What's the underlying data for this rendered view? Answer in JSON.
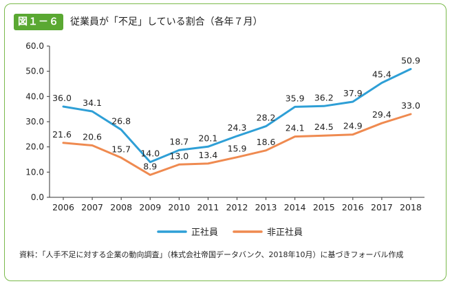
{
  "figure_label": "図１－６",
  "chart_data": {
    "type": "line",
    "title": "従業員が「不足」している割合（各年７月）",
    "categories": [
      "2006",
      "2007",
      "2008",
      "2009",
      "2010",
      "2011",
      "2012",
      "2013",
      "2014",
      "2015",
      "2016",
      "2017",
      "2018"
    ],
    "ylim": [
      0,
      60
    ],
    "yticks": [
      "0.0",
      "10.0",
      "20.0",
      "30.0",
      "40.0",
      "50.0",
      "60.0"
    ],
    "grid": false,
    "legend_position": "bottom-center",
    "series": [
      {
        "name": "正社員",
        "color": "#2e9fd6",
        "values": [
          36.0,
          34.1,
          26.8,
          14.0,
          18.7,
          20.1,
          24.3,
          28.2,
          35.9,
          36.2,
          37.9,
          45.4,
          50.9
        ],
        "labels": [
          "36.0",
          "34.1",
          "26.8",
          "14.0",
          "18.7",
          "20.1",
          "24.3",
          "28.2",
          "35.9",
          "36.2",
          "37.9",
          "45.4",
          "50.9"
        ]
      },
      {
        "name": "非正社員",
        "color": "#ef8a50",
        "values": [
          21.6,
          20.6,
          15.7,
          8.9,
          13.0,
          13.4,
          15.9,
          18.6,
          24.1,
          24.5,
          24.9,
          29.4,
          33.0
        ],
        "labels": [
          "21.6",
          "20.6",
          "15.7",
          "8.9",
          "13.0",
          "13.4",
          "15.9",
          "18.6",
          "24.1",
          "24.5",
          "24.9",
          "29.4",
          "33.0"
        ]
      }
    ]
  },
  "source_note": "資料：「人手不足に対する企業の動向調査」（株式会社帝国データバンク、2018年10月）に基づきフォーバル作成"
}
